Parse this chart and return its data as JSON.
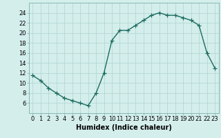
{
  "x": [
    0,
    1,
    2,
    3,
    4,
    5,
    6,
    7,
    8,
    9,
    10,
    11,
    12,
    13,
    14,
    15,
    16,
    17,
    18,
    19,
    20,
    21,
    22,
    23
  ],
  "y": [
    11.5,
    10.5,
    9.0,
    8.0,
    7.0,
    6.5,
    6.0,
    5.5,
    8.0,
    12.0,
    18.5,
    20.5,
    20.5,
    21.5,
    22.5,
    23.5,
    24.0,
    23.5,
    23.5,
    23.0,
    22.5,
    21.5,
    16.0,
    13.0
  ],
  "line_color": "#1a6b5e",
  "marker": "+",
  "markersize": 4,
  "linewidth": 1.0,
  "bg_color": "#d4eeec",
  "grid_color": "#aed4d0",
  "xlabel": "Humidex (Indice chaleur)",
  "xlabel_fontsize": 7,
  "tick_fontsize": 6,
  "ylim": [
    4,
    26
  ],
  "xlim": [
    -0.5,
    23.5
  ],
  "yticks": [
    6,
    8,
    10,
    12,
    14,
    16,
    18,
    20,
    22,
    24
  ],
  "xticks": [
    0,
    1,
    2,
    3,
    4,
    5,
    6,
    7,
    8,
    9,
    10,
    11,
    12,
    13,
    14,
    15,
    16,
    17,
    18,
    19,
    20,
    21,
    22,
    23
  ],
  "xtick_labels": [
    "0",
    "1",
    "2",
    "3",
    "4",
    "5",
    "6",
    "7",
    "8",
    "9",
    "10",
    "11",
    "12",
    "13",
    "14",
    "15",
    "16",
    "17",
    "18",
    "19",
    "20",
    "21",
    "22",
    "23"
  ]
}
